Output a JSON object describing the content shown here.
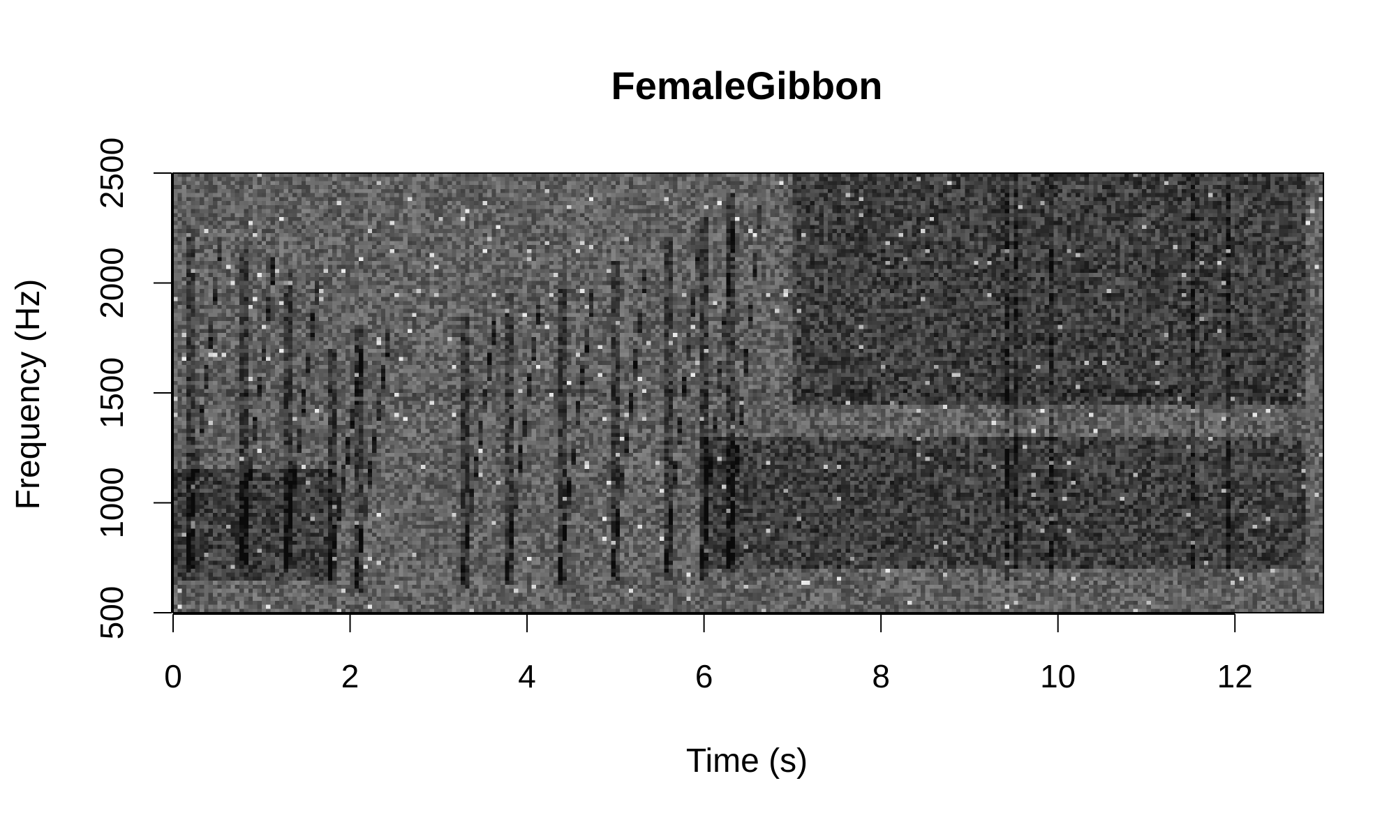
{
  "chart_data": {
    "type": "heatmap",
    "title": "FemaleGibbon",
    "xlabel": "Time (s)",
    "ylabel": "Frequency (Hz)",
    "xlim": [
      0,
      13
    ],
    "ylim": [
      500,
      2500
    ],
    "x_ticks": [
      0,
      2,
      4,
      6,
      8,
      10,
      12
    ],
    "y_ticks": [
      500,
      1000,
      1500,
      2000,
      2500
    ],
    "x_tick_labels": [
      "0",
      "2",
      "4",
      "6",
      "8",
      "10",
      "12"
    ],
    "y_tick_labels": [
      "500",
      "1000",
      "1500",
      "2000",
      "2500"
    ],
    "grid": false,
    "colormap": "grayscale",
    "colors": {
      "background_noise": "#6a6a6a",
      "call_energy": "#141414",
      "frame": "#000000"
    },
    "notes_description": [
      {
        "t": 0.2,
        "f_low": 700,
        "f_high": 2250
      },
      {
        "t": 0.8,
        "f_low": 700,
        "f_high": 2150
      },
      {
        "t": 1.3,
        "f_low": 700,
        "f_high": 2050
      },
      {
        "t": 1.8,
        "f_low": 650,
        "f_high": 1700
      },
      {
        "t": 2.1,
        "f_low": 600,
        "f_high": 1800
      },
      {
        "t": 3.3,
        "f_low": 610,
        "f_high": 1850
      },
      {
        "t": 3.8,
        "f_low": 620,
        "f_high": 1950
      },
      {
        "t": 4.4,
        "f_low": 620,
        "f_high": 2000
      },
      {
        "t": 5.0,
        "f_low": 630,
        "f_high": 2100
      },
      {
        "t": 5.6,
        "f_low": 640,
        "f_high": 2200
      },
      {
        "t": 6.0,
        "f_low": 650,
        "f_high": 2300
      },
      {
        "t": 6.3,
        "f_low": 660,
        "f_high": 2400
      }
    ],
    "band_description": [
      {
        "t_start": 0.0,
        "t_end": 1.8,
        "f_low": 650,
        "f_high": 1150
      },
      {
        "t_start": 6.0,
        "t_end": 12.8,
        "f_low": 700,
        "f_high": 1300
      },
      {
        "t_start": 7.0,
        "t_end": 12.8,
        "f_low": 1450,
        "f_high": 2500
      }
    ]
  }
}
